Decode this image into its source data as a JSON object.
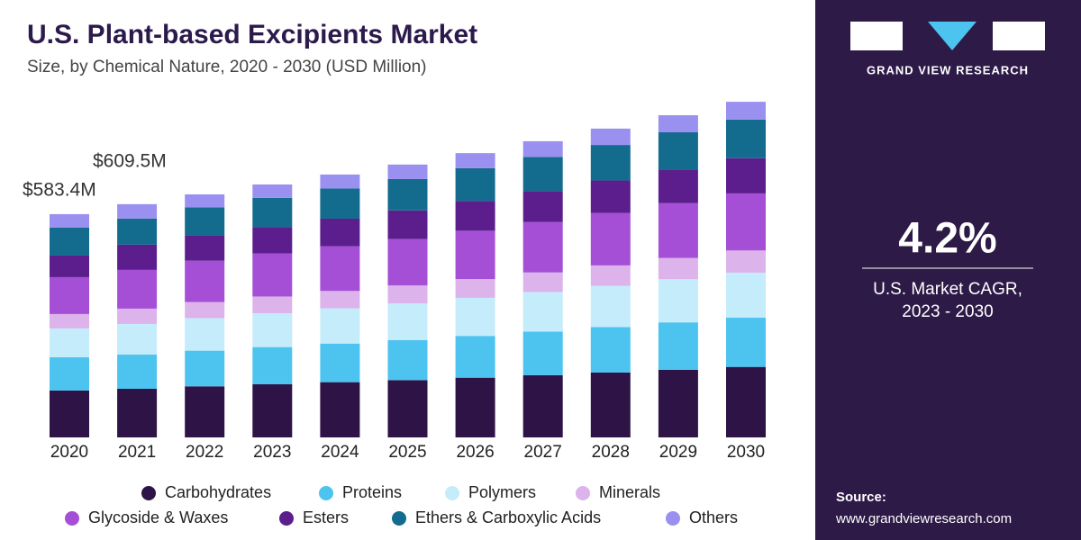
{
  "chart_data": {
    "type": "stacked_bar",
    "title": "U.S. Plant-based Excipients Market",
    "subtitle": "Size, by Chemical Nature, 2020 - 2030 (USD Million)",
    "categories": [
      "2020",
      "2021",
      "2022",
      "2023",
      "2024",
      "2025",
      "2026",
      "2027",
      "2028",
      "2029",
      "2030"
    ],
    "series": [
      {
        "name": "Carbohydrates",
        "color": "#2e1346",
        "values": [
          122.5,
          127.1,
          133.4,
          138.8,
          144.3,
          149.7,
          156.0,
          162.5,
          169.5,
          176.8,
          184.2
        ]
      },
      {
        "name": "Proteins",
        "color": "#4dc3f0",
        "values": [
          87.0,
          89.4,
          93.3,
          97.2,
          101.0,
          104.8,
          109.2,
          113.8,
          118.6,
          123.8,
          128.9
        ]
      },
      {
        "name": "Polymers",
        "color": "#c5ecfa",
        "values": [
          75.3,
          80.0,
          85.1,
          88.6,
          92.1,
          95.5,
          99.6,
          103.7,
          108.1,
          112.8,
          117.5
        ]
      },
      {
        "name": "Minerals",
        "color": "#dcb3ea",
        "values": [
          37.6,
          40.0,
          41.9,
          43.6,
          45.3,
          47.1,
          49.0,
          51.1,
          53.3,
          55.6,
          57.9
        ]
      },
      {
        "name": "Glycoside & Waxes",
        "color": "#a54fd6",
        "values": [
          96.4,
          101.2,
          108.0,
          112.4,
          116.8,
          121.2,
          126.3,
          131.6,
          137.2,
          143.1,
          149.1
        ]
      },
      {
        "name": "Esters",
        "color": "#5c1e8c",
        "values": [
          56.4,
          65.9,
          66.7,
          69.4,
          72.1,
          74.9,
          78.0,
          81.3,
          84.7,
          88.4,
          92.1
        ]
      },
      {
        "name": "Ethers & Carboxylic Acids",
        "color": "#136b8e",
        "values": [
          72.9,
          68.2,
          73.0,
          76.0,
          79.0,
          82.0,
          85.4,
          89.0,
          92.8,
          96.8,
          100.9
        ]
      },
      {
        "name": "Others",
        "color": "#9a90f0",
        "values": [
          35.3,
          37.7,
          33.7,
          35.0,
          36.4,
          37.8,
          39.4,
          41.0,
          42.8,
          44.6,
          46.5
        ]
      }
    ],
    "annotations": [
      "$583.4M",
      "$609.5M"
    ]
  },
  "panel": {
    "brand": "GRAND VIEW RESEARCH",
    "cagr": "4.2%",
    "cagr_label_1": "U.S. Market CAGR,",
    "cagr_label_2": "2023 - 2030",
    "source_label": "Source:",
    "source_url": "www.grandviewresearch.com"
  }
}
